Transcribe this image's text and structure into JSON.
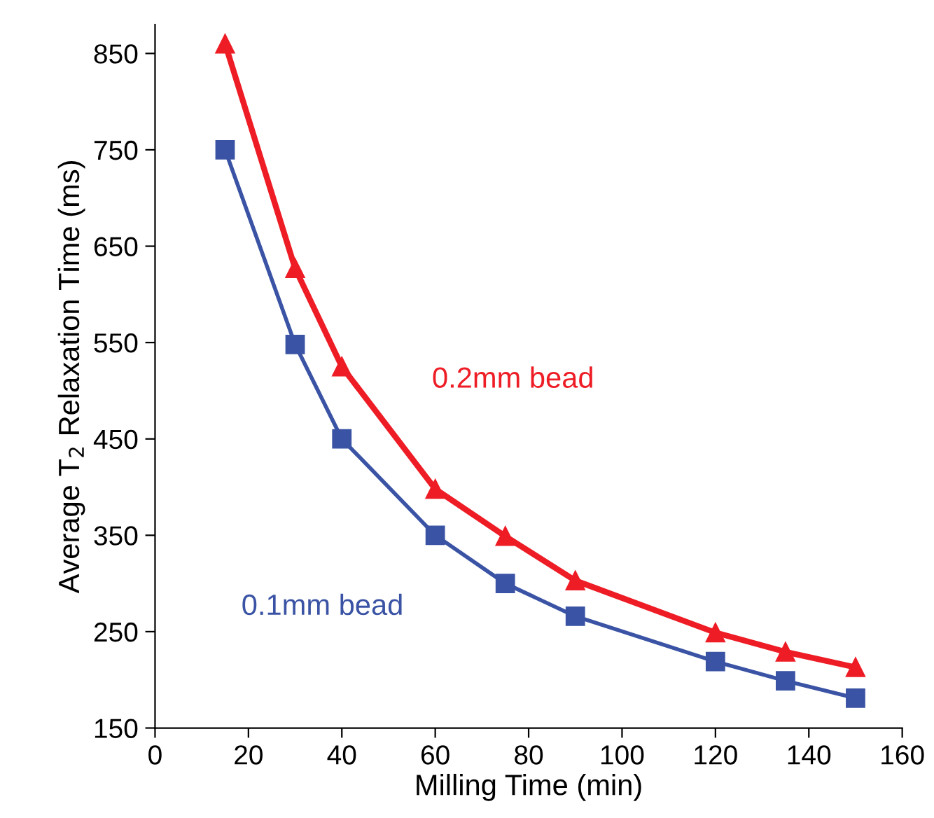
{
  "chart_data": {
    "type": "line",
    "xlabel": "Milling Time (min)",
    "ylabel": "Average T$_{2}$ Relaxation Time (ms)",
    "x": [
      15,
      30,
      40,
      60,
      75,
      90,
      120,
      135,
      150
    ],
    "series": [
      {
        "name": "0.2mm bead",
        "color": "#ee1c25",
        "marker": "triangle",
        "values": [
          860,
          627,
          525,
          398,
          349,
          303,
          249,
          229,
          213
        ]
      },
      {
        "name": "0.1mm bead",
        "color": "#3a53a4",
        "marker": "square",
        "values": [
          750,
          548,
          450,
          350,
          300,
          266,
          219,
          199,
          181
        ]
      }
    ],
    "xlim": [
      0,
      160
    ],
    "xticks": [
      0,
      20,
      40,
      60,
      80,
      100,
      120,
      140,
      160
    ],
    "ylim": [
      150,
      880
    ],
    "yticks": [
      150,
      250,
      350,
      450,
      550,
      650,
      750,
      850
    ],
    "grid": false,
    "legend": false,
    "line_style": "solid"
  }
}
